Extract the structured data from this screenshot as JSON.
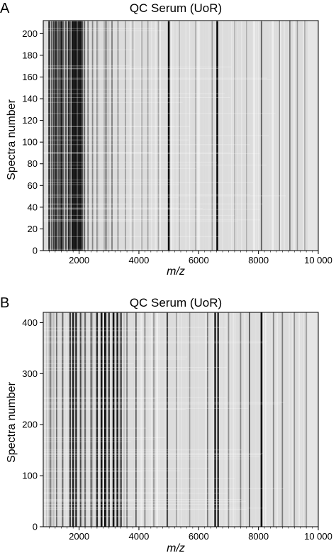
{
  "panels": [
    {
      "letter": "A",
      "chart_data": {
        "type": "heatmap",
        "title": "QC Serum (UoR)",
        "xlabel": "m/z",
        "ylabel": "Spectra number",
        "xlim": [
          800,
          10000
        ],
        "ylim": [
          0,
          212
        ],
        "xticks": [
          2000,
          4000,
          6000,
          8000,
          10000
        ],
        "xtick_labels": [
          "2000",
          "4000",
          "6000",
          "8000",
          "10 000"
        ],
        "yticks": [
          0,
          20,
          40,
          60,
          80,
          100,
          120,
          140,
          160,
          180,
          200
        ],
        "ytick_labels": [
          "0",
          "20",
          "40",
          "60",
          "80",
          "100",
          "120",
          "140",
          "160",
          "180",
          "200"
        ],
        "dark_bands_mz": [
          {
            "mz": 1000,
            "intensity": 0.85
          },
          {
            "mz": 1080,
            "intensity": 0.6
          },
          {
            "mz": 1150,
            "intensity": 0.75
          },
          {
            "mz": 1220,
            "intensity": 0.9
          },
          {
            "mz": 1300,
            "intensity": 0.65
          },
          {
            "mz": 1360,
            "intensity": 0.8
          },
          {
            "mz": 1420,
            "intensity": 0.9
          },
          {
            "mz": 1480,
            "intensity": 0.55
          },
          {
            "mz": 1560,
            "intensity": 0.7
          },
          {
            "mz": 1650,
            "intensity": 0.85
          },
          {
            "mz": 1700,
            "intensity": 0.6
          },
          {
            "mz": 1780,
            "intensity": 0.95
          },
          {
            "mz": 1830,
            "intensity": 0.9
          },
          {
            "mz": 1880,
            "intensity": 0.95
          },
          {
            "mz": 1930,
            "intensity": 0.8
          },
          {
            "mz": 1990,
            "intensity": 0.9
          },
          {
            "mz": 2050,
            "intensity": 0.95
          },
          {
            "mz": 2100,
            "intensity": 0.7
          },
          {
            "mz": 2180,
            "intensity": 0.55
          },
          {
            "mz": 2300,
            "intensity": 0.45
          },
          {
            "mz": 2450,
            "intensity": 0.4
          },
          {
            "mz": 2600,
            "intensity": 0.35
          },
          {
            "mz": 2900,
            "intensity": 0.5
          },
          {
            "mz": 3100,
            "intensity": 0.45
          },
          {
            "mz": 3300,
            "intensity": 0.35
          },
          {
            "mz": 3550,
            "intensity": 0.3
          },
          {
            "mz": 3800,
            "intensity": 0.25
          },
          {
            "mz": 4100,
            "intensity": 0.25
          },
          {
            "mz": 4300,
            "intensity": 0.3
          },
          {
            "mz": 4650,
            "intensity": 0.25
          },
          {
            "mz": 5000,
            "intensity": 1.0
          },
          {
            "mz": 5350,
            "intensity": 0.25
          },
          {
            "mz": 5900,
            "intensity": 0.25
          },
          {
            "mz": 6450,
            "intensity": 0.3
          },
          {
            "mz": 6620,
            "intensity": 1.0
          },
          {
            "mz": 7200,
            "intensity": 0.2
          },
          {
            "mz": 7600,
            "intensity": 0.2
          },
          {
            "mz": 8100,
            "intensity": 0.55
          },
          {
            "mz": 8700,
            "intensity": 0.35
          },
          {
            "mz": 9050,
            "intensity": 0.45
          },
          {
            "mz": 9300,
            "intensity": 0.3
          },
          {
            "mz": 9550,
            "intensity": 0.25
          }
        ]
      }
    },
    {
      "letter": "B",
      "chart_data": {
        "type": "heatmap",
        "title": "QC Serum (UoR)",
        "xlabel": "m/z",
        "ylabel": "Spectra number",
        "xlim": [
          800,
          10000
        ],
        "ylim": [
          0,
          420
        ],
        "xticks": [
          2000,
          4000,
          6000,
          8000,
          10000
        ],
        "xtick_labels": [
          "2000",
          "4000",
          "6000",
          "8000",
          "10 000"
        ],
        "yticks": [
          0,
          100,
          200,
          300,
          400
        ],
        "ytick_labels": [
          "0",
          "100",
          "200",
          "300",
          "400"
        ],
        "dark_bands_mz": [
          {
            "mz": 1050,
            "intensity": 0.45
          },
          {
            "mz": 1250,
            "intensity": 0.5
          },
          {
            "mz": 1450,
            "intensity": 0.55
          },
          {
            "mz": 1700,
            "intensity": 0.75
          },
          {
            "mz": 1800,
            "intensity": 0.9
          },
          {
            "mz": 1900,
            "intensity": 0.85
          },
          {
            "mz": 2050,
            "intensity": 0.7
          },
          {
            "mz": 2200,
            "intensity": 0.55
          },
          {
            "mz": 2400,
            "intensity": 0.6
          },
          {
            "mz": 2600,
            "intensity": 0.85
          },
          {
            "mz": 2750,
            "intensity": 0.95
          },
          {
            "mz": 2870,
            "intensity": 1.0
          },
          {
            "mz": 3000,
            "intensity": 0.8
          },
          {
            "mz": 3150,
            "intensity": 0.95
          },
          {
            "mz": 3280,
            "intensity": 0.9
          },
          {
            "mz": 3400,
            "intensity": 0.75
          },
          {
            "mz": 3600,
            "intensity": 0.45
          },
          {
            "mz": 3900,
            "intensity": 0.55
          },
          {
            "mz": 4200,
            "intensity": 0.4
          },
          {
            "mz": 4500,
            "intensity": 0.35
          },
          {
            "mz": 4950,
            "intensity": 0.7
          },
          {
            "mz": 5250,
            "intensity": 0.3
          },
          {
            "mz": 5700,
            "intensity": 0.3
          },
          {
            "mz": 6300,
            "intensity": 0.45
          },
          {
            "mz": 6550,
            "intensity": 0.9
          },
          {
            "mz": 6650,
            "intensity": 0.85
          },
          {
            "mz": 7000,
            "intensity": 0.35
          },
          {
            "mz": 7400,
            "intensity": 0.4
          },
          {
            "mz": 7700,
            "intensity": 0.55
          },
          {
            "mz": 8100,
            "intensity": 1.0
          },
          {
            "mz": 8500,
            "intensity": 0.4
          },
          {
            "mz": 8800,
            "intensity": 0.45
          },
          {
            "mz": 9200,
            "intensity": 0.35
          },
          {
            "mz": 9600,
            "intensity": 0.3
          }
        ]
      }
    }
  ]
}
